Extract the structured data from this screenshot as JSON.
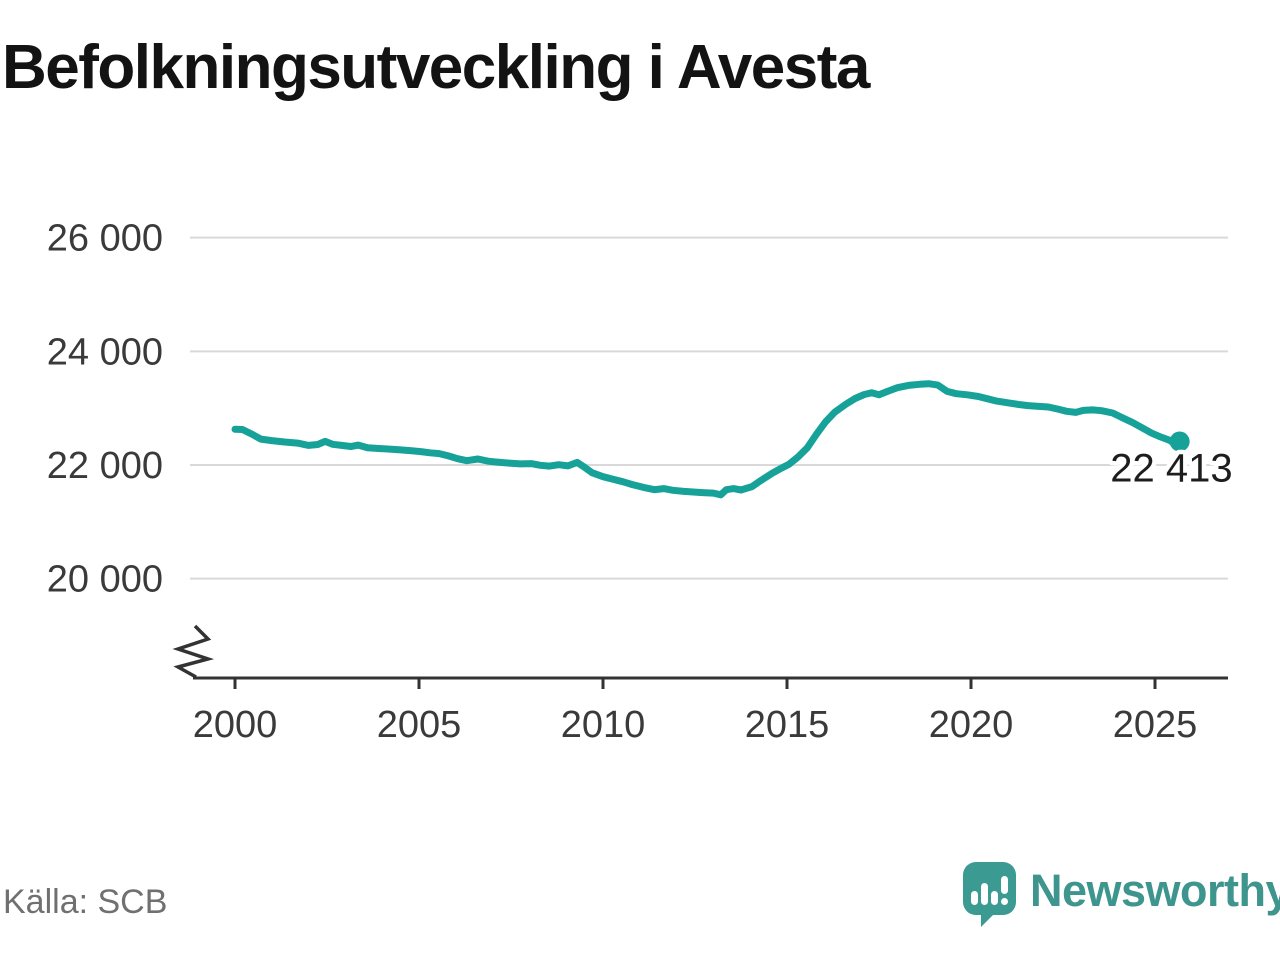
{
  "title": "Befolkningsutveckling i Avesta",
  "source": "Källa: SCB",
  "branding": {
    "name": "Newsworthy",
    "logo_icon": "speech-bubble-bar-chart"
  },
  "colors": {
    "line": "#16a298",
    "grid": "#d9d9d9",
    "axis": "#333333",
    "tick_label": "#3a3a3a",
    "title": "#131313",
    "source": "#707070",
    "brand": "#3e958e",
    "end_label": "#1d1d1d"
  },
  "chart_data": {
    "type": "line",
    "title": "Befolkningsutveckling i Avesta",
    "grid": true,
    "axis_break": true,
    "legend": "none",
    "x_range_years": [
      2000,
      2025.67
    ],
    "x_tick_years": [
      2000,
      2005,
      2010,
      2015,
      2020,
      2025
    ],
    "y_ticks": [
      {
        "value": 20000,
        "label": "20 000"
      },
      {
        "value": 22000,
        "label": "22 000"
      },
      {
        "value": 24000,
        "label": "24 000"
      },
      {
        "value": 26000,
        "label": "26 000"
      }
    ],
    "end_point": {
      "x": 2025.67,
      "value": 22413,
      "label": "22 413"
    },
    "series": [
      {
        "points": [
          [
            2000.0,
            22630
          ],
          [
            2000.2,
            22625
          ],
          [
            2000.45,
            22545
          ],
          [
            2000.7,
            22455
          ],
          [
            2001.0,
            22430
          ],
          [
            2001.35,
            22405
          ],
          [
            2001.7,
            22385
          ],
          [
            2002.0,
            22345
          ],
          [
            2002.25,
            22360
          ],
          [
            2002.45,
            22415
          ],
          [
            2002.65,
            22365
          ],
          [
            2002.9,
            22345
          ],
          [
            2003.15,
            22325
          ],
          [
            2003.35,
            22350
          ],
          [
            2003.6,
            22305
          ],
          [
            2003.9,
            22290
          ],
          [
            2004.2,
            22280
          ],
          [
            2004.5,
            22265
          ],
          [
            2004.8,
            22250
          ],
          [
            2005.05,
            22235
          ],
          [
            2005.3,
            22215
          ],
          [
            2005.55,
            22200
          ],
          [
            2005.8,
            22160
          ],
          [
            2006.05,
            22110
          ],
          [
            2006.3,
            22075
          ],
          [
            2006.6,
            22105
          ],
          [
            2006.9,
            22065
          ],
          [
            2007.2,
            22045
          ],
          [
            2007.5,
            22030
          ],
          [
            2007.75,
            22020
          ],
          [
            2008.05,
            22025
          ],
          [
            2008.3,
            21995
          ],
          [
            2008.55,
            21980
          ],
          [
            2008.8,
            22005
          ],
          [
            2009.05,
            21985
          ],
          [
            2009.3,
            22045
          ],
          [
            2009.5,
            21960
          ],
          [
            2009.7,
            21865
          ],
          [
            2010.0,
            21795
          ],
          [
            2010.3,
            21745
          ],
          [
            2010.55,
            21705
          ],
          [
            2010.8,
            21655
          ],
          [
            2011.1,
            21605
          ],
          [
            2011.4,
            21565
          ],
          [
            2011.65,
            21585
          ],
          [
            2011.9,
            21555
          ],
          [
            2012.2,
            21535
          ],
          [
            2012.45,
            21525
          ],
          [
            2012.7,
            21515
          ],
          [
            2013.0,
            21505
          ],
          [
            2013.2,
            21475
          ],
          [
            2013.35,
            21565
          ],
          [
            2013.55,
            21585
          ],
          [
            2013.75,
            21560
          ],
          [
            2014.05,
            21620
          ],
          [
            2014.3,
            21730
          ],
          [
            2014.6,
            21855
          ],
          [
            2014.85,
            21945
          ],
          [
            2015.05,
            22010
          ],
          [
            2015.3,
            22140
          ],
          [
            2015.55,
            22300
          ],
          [
            2015.8,
            22540
          ],
          [
            2016.05,
            22760
          ],
          [
            2016.3,
            22930
          ],
          [
            2016.6,
            23070
          ],
          [
            2016.85,
            23170
          ],
          [
            2017.1,
            23240
          ],
          [
            2017.3,
            23270
          ],
          [
            2017.5,
            23235
          ],
          [
            2017.75,
            23300
          ],
          [
            2018.0,
            23360
          ],
          [
            2018.3,
            23400
          ],
          [
            2018.6,
            23420
          ],
          [
            2018.85,
            23430
          ],
          [
            2019.1,
            23405
          ],
          [
            2019.35,
            23295
          ],
          [
            2019.6,
            23255
          ],
          [
            2019.9,
            23235
          ],
          [
            2020.2,
            23205
          ],
          [
            2020.45,
            23165
          ],
          [
            2020.7,
            23125
          ],
          [
            2021.0,
            23095
          ],
          [
            2021.3,
            23065
          ],
          [
            2021.55,
            23045
          ],
          [
            2021.8,
            23035
          ],
          [
            2022.1,
            23020
          ],
          [
            2022.35,
            22985
          ],
          [
            2022.6,
            22945
          ],
          [
            2022.85,
            22925
          ],
          [
            2023.05,
            22960
          ],
          [
            2023.3,
            22970
          ],
          [
            2023.55,
            22955
          ],
          [
            2023.85,
            22915
          ],
          [
            2024.1,
            22835
          ],
          [
            2024.4,
            22745
          ],
          [
            2024.65,
            22655
          ],
          [
            2024.9,
            22565
          ],
          [
            2025.15,
            22495
          ],
          [
            2025.4,
            22435
          ],
          [
            2025.55,
            22365
          ],
          [
            2025.67,
            22413
          ]
        ]
      }
    ]
  }
}
